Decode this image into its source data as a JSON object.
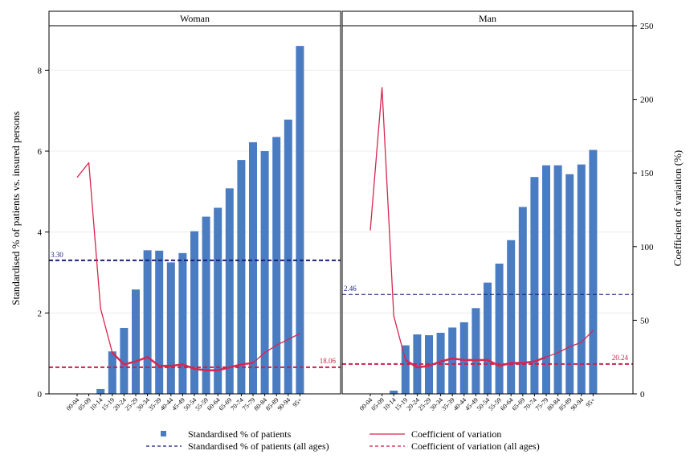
{
  "chart_data": {
    "type": "bar",
    "categories": [
      "00-04",
      "05-09",
      "10-14",
      "15-19",
      "20-24",
      "25-29",
      "30-34",
      "35-39",
      "40-44",
      "45-49",
      "50-54",
      "55-59",
      "60-64",
      "65-69",
      "70-74",
      "75-79",
      "80-84",
      "85-89",
      "90-94",
      "95+"
    ],
    "ylabel_left": "Standardised % of patients vs. insured persons",
    "ylabel_right": "Coefficient of variation (%)",
    "ylim_left": [
      0,
      9.1
    ],
    "ylim_right": [
      0,
      250
    ],
    "yticks_left": [
      "0",
      "2",
      "4",
      "6",
      "8"
    ],
    "yticks_right": [
      "0",
      "50",
      "100",
      "150",
      "200",
      "250"
    ],
    "colors": {
      "bar": "#4a7cc2",
      "ref_bar": "#1a1f7a",
      "cv": "#d7264f",
      "ref_cv": "#cc1f4a"
    },
    "panels": [
      {
        "title": "Woman",
        "bars": [
          0,
          0,
          0.12,
          1.05,
          1.63,
          2.58,
          3.55,
          3.54,
          3.25,
          3.48,
          4.02,
          4.38,
          4.6,
          5.08,
          5.78,
          6.22,
          6.0,
          6.35,
          6.78,
          8.6
        ],
        "cv": [
          147,
          157,
          58,
          28,
          20,
          22,
          25,
          19,
          19,
          20,
          17,
          16,
          16,
          18,
          20,
          21,
          28,
          33,
          37,
          41
        ],
        "ref_bar": 3.3,
        "ref_bar_label": "3.30",
        "ref_cv": 18.06,
        "ref_cv_label": "18.06"
      },
      {
        "title": "Man",
        "bars": [
          0,
          0,
          0.08,
          1.2,
          1.47,
          1.45,
          1.51,
          1.64,
          1.77,
          2.12,
          2.75,
          3.22,
          3.8,
          4.62,
          5.36,
          5.65,
          5.65,
          5.43,
          5.67,
          6.03
        ],
        "cv": [
          111,
          208,
          53,
          23,
          18,
          19,
          22,
          24,
          23,
          23,
          23,
          19,
          21,
          21,
          22,
          25,
          28,
          32,
          35,
          43
        ],
        "ref_bar": 2.46,
        "ref_bar_label": "2.46",
        "ref_cv": 20.24,
        "ref_cv_label": "20.24"
      }
    ],
    "legend": [
      {
        "label": "Standardised % of patients",
        "kind": "bar-marker"
      },
      {
        "label": "Coefficient of variation",
        "kind": "cv-line"
      },
      {
        "label": "Standardised % of patients (all ages)",
        "kind": "ref-bar-dash"
      },
      {
        "label": "Coefficient of variation (all ages)",
        "kind": "ref-cv-dash"
      }
    ]
  }
}
